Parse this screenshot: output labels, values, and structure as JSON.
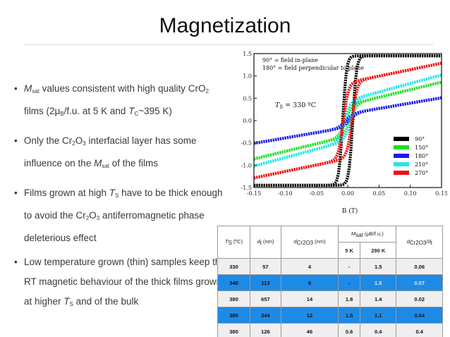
{
  "slide": {
    "title": "Magnetization"
  },
  "bullets": [
    {
      "a": "M",
      "a_sub": "sat",
      "b": " values consistent with high quality CrO",
      "b_sub": "2",
      "c": " films (2μ",
      "c_sub": "B",
      "d": "/f.u. at 5 K and ",
      "e": "T",
      "e_sub": "C",
      "f": "~395 K)"
    },
    {
      "a": "Only the Cr",
      "a_sub": "2",
      "b": "O",
      "b_sub": "3",
      "c": " interfacial layer has some influence on the ",
      "d": "M",
      "d_sub": "sat",
      "e": " of the films"
    },
    {
      "a": "Films grown at high ",
      "b": "T",
      "b_sub": "S",
      "c": " have to be thick enough to avoid the Cr",
      "c_sub": "2",
      "d": "O",
      "d_sub": "3",
      "e": " antiferromagnetic phase deleterious effect"
    },
    {
      "a": "Low temperature grown (thin) samples keep the RT magnetic behaviour of the thick films grown at higher ",
      "b": "T",
      "b_sub": "S",
      "c": " and of the bulk"
    }
  ],
  "chart_data": {
    "type": "line",
    "xlabel": "B (T)",
    "ylabel": "",
    "xlim": [
      -0.15,
      0.15
    ],
    "ylim": [
      -1.5,
      1.5
    ],
    "x_ticks": [
      "-0.15",
      "-0.10",
      "-0.05",
      "0.00",
      "0.05",
      "0.10",
      "0.15"
    ],
    "y_ticks": [
      "1.5",
      "1.0",
      "0.5",
      "0.0",
      "-0.5",
      "-1.0",
      "-1.5"
    ],
    "annotations": [
      "90° = field in-plane",
      "180° = field perpendicular to plane"
    ],
    "inset_label": {
      "prefix": "T",
      "sub": "S",
      "suffix": " = 330 ºC"
    },
    "series": [
      {
        "name": "90°",
        "color": "#000000",
        "sat": 1.45,
        "slope": 0.0,
        "hc": 0.008,
        "w": 0.006
      },
      {
        "name": "150°",
        "color": "#22dd22",
        "sat": 0.35,
        "slope": 3.4,
        "hc": 0.004,
        "w": 0.01
      },
      {
        "name": "180°",
        "color": "#1a1aee",
        "sat": 0.15,
        "slope": 2.4,
        "hc": 0.003,
        "w": 0.012
      },
      {
        "name": "210°",
        "color": "#22e6e6",
        "sat": 0.45,
        "slope": 3.8,
        "hc": 0.005,
        "w": 0.01
      },
      {
        "name": "270°",
        "color": "#ee1111",
        "sat": 0.85,
        "slope": 2.9,
        "hc": 0.007,
        "w": 0.008
      }
    ]
  },
  "table": {
    "headers": {
      "ts": {
        "main": "T",
        "sub": "S",
        "rest": " (ºC)"
      },
      "dt": {
        "main": "d",
        "sub": "t",
        "rest": " (nm)"
      },
      "dcr": {
        "main": "d",
        "sub": "Cr2O3",
        "rest": " (nm)"
      },
      "msat": {
        "main": "M",
        "sub": "sat",
        "rest": " (μB/f.u.)"
      },
      "ratio": {
        "main": "d",
        "sub": "Cr2O3",
        "rest": "/d",
        "sub2": "t"
      }
    },
    "subheaders": [
      "5 K",
      "290 K"
    ],
    "rows": [
      [
        "330",
        "57",
        "4",
        "-",
        "1.5",
        "0.06"
      ],
      [
        "340",
        "113",
        "8",
        "-",
        "1.5",
        "0.07"
      ],
      [
        "380",
        "657",
        "14",
        "1.8",
        "1.4",
        "0.02"
      ],
      [
        "380",
        "344",
        "12",
        "1.5",
        "1.1",
        "0.04"
      ],
      [
        "380",
        "126",
        "46",
        "0.6",
        "0.4",
        "0.4"
      ]
    ]
  }
}
